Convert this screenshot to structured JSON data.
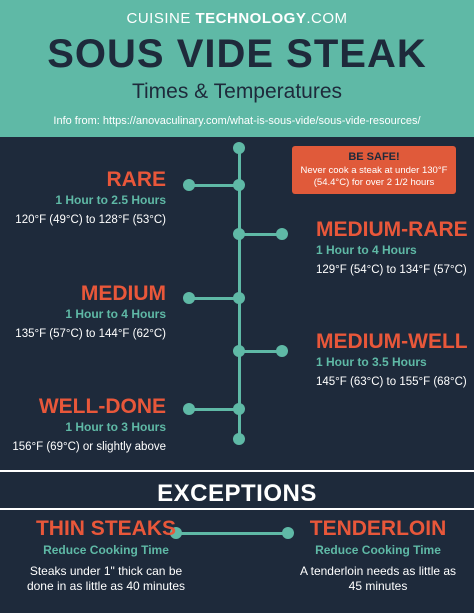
{
  "header": {
    "brand_light": "CUISINE",
    "brand_bold": "TECHNOLOGY",
    "brand_suffix": ".COM",
    "title": "SOUS VIDE STEAK",
    "subtitle": "Times & Temperatures",
    "source": "Info from: https://anovaculinary.com/what-is-sous-vide/sous-vide-resources/"
  },
  "warning": {
    "title": "BE SAFE!",
    "body": "Never cook a steak at under 130°F (54.4°C) for over 2 1/2 hours"
  },
  "doneness": [
    {
      "name": "RARE",
      "time": "1 Hour to 2.5 Hours",
      "temp": "120°F (49°C) to 128°F (53°C)"
    },
    {
      "name": "MEDIUM-RARE",
      "time": "1 Hour to 4 Hours",
      "temp": "129°F (54°C) to 134°F (57°C)"
    },
    {
      "name": "MEDIUM",
      "time": "1 Hour to 4 Hours",
      "temp": "135°F (57°C) to 144°F (62°C)"
    },
    {
      "name": "MEDIUM-WELL",
      "time": "1 Hour to 3.5 Hours",
      "temp": "145°F (63°C) to 155°F (68°C)"
    },
    {
      "name": "WELL-DONE",
      "time": "1 Hour to 3 Hours",
      "temp": "156°F (69°C) or slightly above"
    }
  ],
  "exceptions": {
    "title": "EXCEPTIONS",
    "items": [
      {
        "name": "THIN STEAKS",
        "time": "Reduce Cooking Time",
        "desc": "Steaks under 1\" thick can be done in as little as 40 minutes"
      },
      {
        "name": "TENDERLOIN",
        "time": "Reduce Cooking Time",
        "desc": "A tenderloin needs as little as 45 minutes"
      }
    ]
  },
  "colors": {
    "background": "#1e2a3b",
    "teal": "#5fb9a6",
    "accent": "#e8573a",
    "warning": "#e05a3a"
  }
}
